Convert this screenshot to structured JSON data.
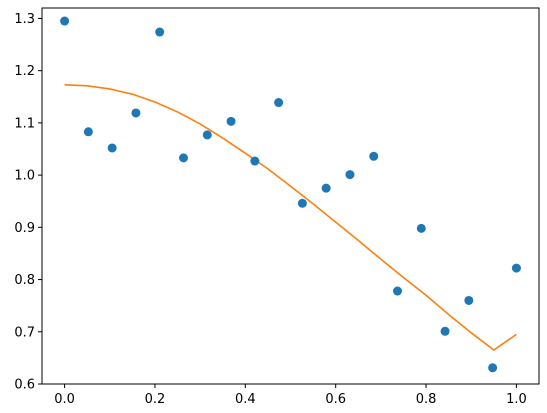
{
  "chart_data": {
    "type": "scatter",
    "title": "",
    "xlabel": "",
    "ylabel": "",
    "xlim": [
      -0.05,
      1.05
    ],
    "ylim": [
      0.6,
      1.32
    ],
    "grid": false,
    "x_ticks": [
      0.0,
      0.2,
      0.4,
      0.6,
      0.8,
      1.0
    ],
    "x_tick_labels": [
      "0.0",
      "0.2",
      "0.4",
      "0.6",
      "0.8",
      "1.0"
    ],
    "y_ticks": [
      0.6,
      0.7,
      0.8,
      0.9,
      1.0,
      1.1,
      1.2,
      1.3
    ],
    "y_tick_labels": [
      "0.6",
      "0.7",
      "0.8",
      "0.9",
      "1.0",
      "1.1",
      "1.2",
      "1.3"
    ],
    "series": [
      {
        "kind": "scatter",
        "color": "#1f77b4",
        "x": [
          0.0,
          0.0526,
          0.1053,
          0.1579,
          0.2105,
          0.2632,
          0.3158,
          0.3684,
          0.4211,
          0.4737,
          0.5263,
          0.5789,
          0.6316,
          0.6842,
          0.7368,
          0.7895,
          0.8421,
          0.8947,
          0.9474,
          1.0
        ],
        "y": [
          1.295,
          1.083,
          1.052,
          1.119,
          1.274,
          1.033,
          1.077,
          1.103,
          1.027,
          1.139,
          0.946,
          0.975,
          1.001,
          1.036,
          0.778,
          0.898,
          0.701,
          0.76,
          0.631,
          0.822
        ]
      },
      {
        "kind": "line",
        "color": "#ff7f0e",
        "x": [
          0.0,
          0.05,
          0.1,
          0.15,
          0.2,
          0.25,
          0.3,
          0.35,
          0.4,
          0.45,
          0.5,
          0.55,
          0.6,
          0.65,
          0.7,
          0.75,
          0.8,
          0.85,
          0.9,
          0.95,
          1.0
        ],
        "y": [
          1.173,
          1.171,
          1.165,
          1.155,
          1.14,
          1.121,
          1.098,
          1.071,
          1.042,
          1.012,
          0.979,
          0.945,
          0.91,
          0.875,
          0.839,
          0.804,
          0.77,
          0.733,
          0.698,
          0.665,
          0.695
        ]
      }
    ]
  }
}
